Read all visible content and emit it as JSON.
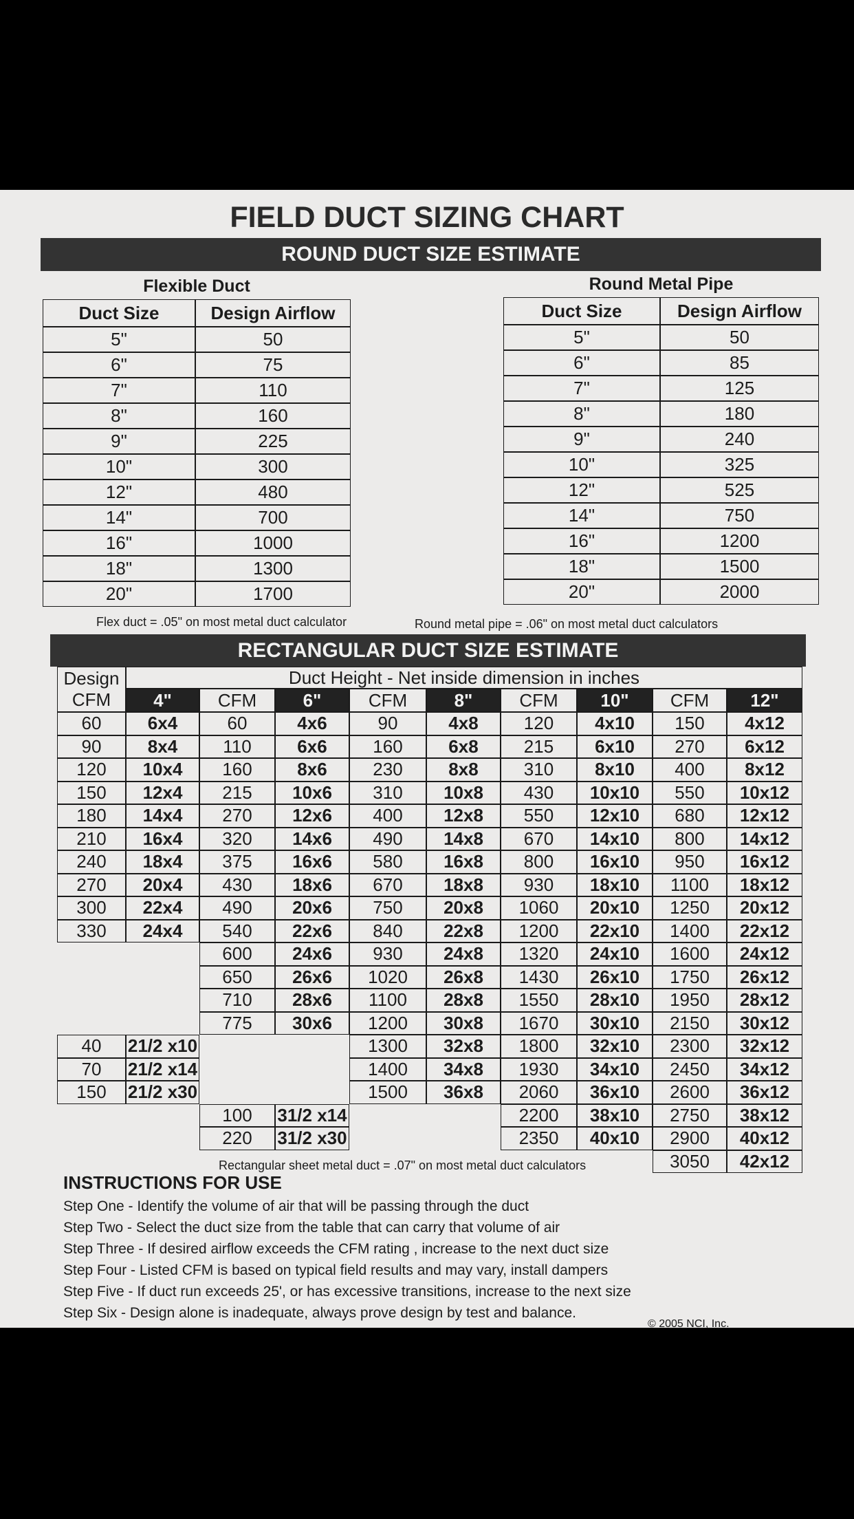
{
  "title": "FIELD DUCT SIZING CHART",
  "round_banner": "ROUND DUCT SIZE ESTIMATE",
  "flex": {
    "label": "Flexible Duct",
    "headers": [
      "Duct Size",
      "Design Airflow"
    ],
    "rows": [
      [
        "5\"",
        "50"
      ],
      [
        "6\"",
        "75"
      ],
      [
        "7\"",
        "110"
      ],
      [
        "8\"",
        "160"
      ],
      [
        "9\"",
        "225"
      ],
      [
        "10\"",
        "300"
      ],
      [
        "12\"",
        "480"
      ],
      [
        "14\"",
        "700"
      ],
      [
        "16\"",
        "1000"
      ],
      [
        "18\"",
        "1300"
      ],
      [
        "20\"",
        "1700"
      ]
    ],
    "note": "Flex duct  = .05\" on most metal duct calculator"
  },
  "metal": {
    "label": "Round Metal Pipe",
    "headers": [
      "Duct Size",
      "Design Airflow"
    ],
    "rows": [
      [
        "5\"",
        "50"
      ],
      [
        "6\"",
        "85"
      ],
      [
        "7\"",
        "125"
      ],
      [
        "8\"",
        "180"
      ],
      [
        "9\"",
        "240"
      ],
      [
        "10\"",
        "325"
      ],
      [
        "12\"",
        "525"
      ],
      [
        "14\"",
        "750"
      ],
      [
        "16\"",
        "1200"
      ],
      [
        "18\"",
        "1500"
      ],
      [
        "20\"",
        "2000"
      ]
    ],
    "note": "Round metal pipe = .06\" on most metal duct calculators"
  },
  "rect": {
    "banner": "RECTANGULAR DUCT SIZE ESTIMATE",
    "design_cfm": "Design CFM",
    "duct_height": "Duct Height  - Net inside dimension in inches",
    "cfm_label": "CFM",
    "groups": [
      {
        "height": "4\"",
        "rows": [
          [
            "60",
            "6x4"
          ],
          [
            "90",
            "8x4"
          ],
          [
            "120",
            "10x4"
          ],
          [
            "150",
            "12x4"
          ],
          [
            "180",
            "14x4"
          ],
          [
            "210",
            "16x4"
          ],
          [
            "240",
            "18x4"
          ],
          [
            "270",
            "20x4"
          ],
          [
            "300",
            "22x4"
          ],
          [
            "330",
            "24x4"
          ]
        ]
      },
      {
        "height": "6\"",
        "rows": [
          [
            "60",
            "4x6"
          ],
          [
            "110",
            "6x6"
          ],
          [
            "160",
            "8x6"
          ],
          [
            "215",
            "10x6"
          ],
          [
            "270",
            "12x6"
          ],
          [
            "320",
            "14x6"
          ],
          [
            "375",
            "16x6"
          ],
          [
            "430",
            "18x6"
          ],
          [
            "490",
            "20x6"
          ],
          [
            "540",
            "22x6"
          ],
          [
            "600",
            "24x6"
          ],
          [
            "650",
            "26x6"
          ],
          [
            "710",
            "28x6"
          ],
          [
            "775",
            "30x6"
          ]
        ]
      },
      {
        "height": "8\"",
        "rows": [
          [
            "90",
            "4x8"
          ],
          [
            "160",
            "6x8"
          ],
          [
            "230",
            "8x8"
          ],
          [
            "310",
            "10x8"
          ],
          [
            "400",
            "12x8"
          ],
          [
            "490",
            "14x8"
          ],
          [
            "580",
            "16x8"
          ],
          [
            "670",
            "18x8"
          ],
          [
            "750",
            "20x8"
          ],
          [
            "840",
            "22x8"
          ],
          [
            "930",
            "24x8"
          ],
          [
            "1020",
            "26x8"
          ],
          [
            "1100",
            "28x8"
          ],
          [
            "1200",
            "30x8"
          ],
          [
            "1300",
            "32x8"
          ],
          [
            "1400",
            "34x8"
          ],
          [
            "1500",
            "36x8"
          ]
        ]
      },
      {
        "height": "10\"",
        "rows": [
          [
            "120",
            "4x10"
          ],
          [
            "215",
            "6x10"
          ],
          [
            "310",
            "8x10"
          ],
          [
            "430",
            "10x10"
          ],
          [
            "550",
            "12x10"
          ],
          [
            "670",
            "14x10"
          ],
          [
            "800",
            "16x10"
          ],
          [
            "930",
            "18x10"
          ],
          [
            "1060",
            "20x10"
          ],
          [
            "1200",
            "22x10"
          ],
          [
            "1320",
            "24x10"
          ],
          [
            "1430",
            "26x10"
          ],
          [
            "1550",
            "28x10"
          ],
          [
            "1670",
            "30x10"
          ],
          [
            "1800",
            "32x10"
          ],
          [
            "1930",
            "34x10"
          ],
          [
            "2060",
            "36x10"
          ],
          [
            "2200",
            "38x10"
          ],
          [
            "2350",
            "40x10"
          ]
        ]
      },
      {
        "height": "12\"",
        "rows": [
          [
            "150",
            "4x12"
          ],
          [
            "270",
            "6x12"
          ],
          [
            "400",
            "8x12"
          ],
          [
            "550",
            "10x12"
          ],
          [
            "680",
            "12x12"
          ],
          [
            "800",
            "14x12"
          ],
          [
            "950",
            "16x12"
          ],
          [
            "1100",
            "18x12"
          ],
          [
            "1250",
            "20x12"
          ],
          [
            "1400",
            "22x12"
          ],
          [
            "1600",
            "24x12"
          ],
          [
            "1750",
            "26x12"
          ],
          [
            "1950",
            "28x12"
          ],
          [
            "2150",
            "30x12"
          ],
          [
            "2300",
            "32x12"
          ],
          [
            "2450",
            "34x12"
          ],
          [
            "2600",
            "36x12"
          ],
          [
            "2750",
            "38x12"
          ],
          [
            "2900",
            "40x12"
          ],
          [
            "3050",
            "42x12"
          ]
        ]
      }
    ],
    "half_2": [
      [
        "40",
        "21/2 x10"
      ],
      [
        "70",
        "21/2 x14"
      ],
      [
        "150",
        "21/2 x30"
      ]
    ],
    "half_3": [
      [
        "100",
        "31/2 x14"
      ],
      [
        "220",
        "31/2 x30"
      ]
    ],
    "note": "Rectangular sheet metal duct  = .07\" on most metal duct calculators"
  },
  "instructions": {
    "heading": "INSTRUCTIONS FOR USE",
    "steps": [
      "Step One - Identify the volume of air that will be passing through the duct",
      "Step Two - Select the duct size from the table that can carry that volume of air",
      "Step Three - If desired airflow exceeds the CFM rating , increase to the next duct size",
      "Step Four - Listed CFM is based on typical field results and may vary, install dampers",
      "Step Five - If duct run exceeds 25', or has excessive transitions, increase to the next size",
      "Step Six - Design alone is inadequate, always prove design by test and balance."
    ]
  },
  "copyright": "© 2005 NCI, Inc."
}
